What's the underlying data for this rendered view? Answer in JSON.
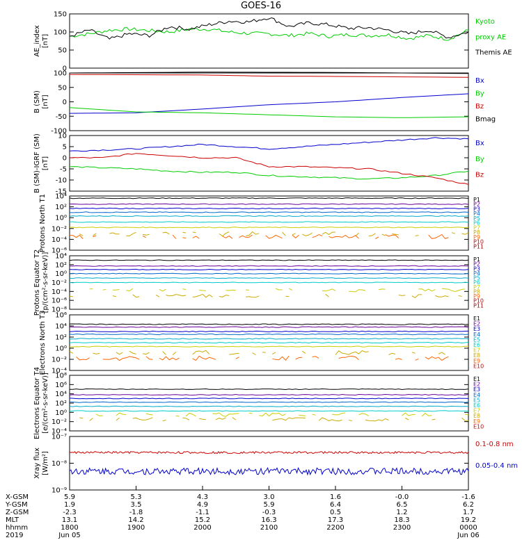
{
  "title": "GOES-16",
  "colors": {
    "black": "#000000",
    "green": "#00cc00",
    "blue": "#0000cc",
    "red": "#cc0000",
    "p": [
      "#000000",
      "#660099",
      "#0000cc",
      "#0066cc",
      "#00aacc",
      "#00cccc",
      "#cccc00",
      "#ccaa00",
      "#ff6600",
      "#cc0000",
      "#aa0000"
    ]
  },
  "chart_data": [
    {
      "type": "line",
      "panel": "ae",
      "ylabel": "AE_index [nT]",
      "ylim": [
        0,
        150
      ],
      "yticks": [
        "0",
        "50",
        "100",
        "150"
      ],
      "legend": [
        {
          "text": "Kyoto",
          "color": "#00cc00"
        },
        {
          "text": "proxy AE",
          "color": "#00cc00"
        },
        {
          "text": "Themis AE",
          "color": "#000000"
        }
      ],
      "series": [
        {
          "name": "Kyoto proxy AE",
          "color": "#00cc00",
          "x": [
            18.0,
            18.3,
            18.6,
            18.9,
            19.2,
            19.5,
            19.8,
            20.1,
            20.4,
            20.7,
            21.0,
            21.3,
            21.6,
            21.9,
            22.2,
            22.5,
            22.8,
            23.1,
            23.4,
            23.7,
            24.0
          ],
          "values": [
            88,
            95,
            105,
            108,
            104,
            100,
            108,
            108,
            100,
            96,
            95,
            90,
            96,
            88,
            93,
            90,
            92,
            82,
            90,
            80,
            105
          ]
        },
        {
          "name": "Themis AE",
          "color": "#000000",
          "x": [
            18.0,
            18.3,
            18.6,
            18.9,
            19.2,
            19.5,
            19.8,
            20.1,
            20.4,
            20.7,
            21.0,
            21.3,
            21.6,
            21.9,
            22.2,
            22.5,
            22.8,
            23.1,
            23.4,
            23.7,
            24.0
          ],
          "values": [
            88,
            105,
            80,
            95,
            90,
            115,
            108,
            120,
            130,
            128,
            140,
            115,
            125,
            120,
            110,
            112,
            105,
            95,
            105,
            85,
            100
          ]
        }
      ]
    },
    {
      "type": "line",
      "panel": "bsm",
      "ylabel": "B (SM) [nT]",
      "ylim": [
        -100,
        100
      ],
      "yticks": [
        "-100",
        "-50",
        "0",
        "50",
        "100"
      ],
      "legend": [
        {
          "text": "Bx",
          "color": "#0000cc"
        },
        {
          "text": "By",
          "color": "#00cc00"
        },
        {
          "text": "Bz",
          "color": "#cc0000"
        },
        {
          "text": "Bmag",
          "color": "#000000"
        }
      ],
      "series": [
        {
          "name": "Bmag",
          "color": "#000000",
          "x": [
            18,
            20,
            22,
            24
          ],
          "values": [
            100,
            103,
            102,
            98
          ]
        },
        {
          "name": "Bz",
          "color": "#cc0000",
          "x": [
            18,
            20,
            21,
            22,
            24
          ],
          "values": [
            95,
            93,
            89,
            88,
            85
          ]
        },
        {
          "name": "Bx",
          "color": "#0000cc",
          "x": [
            18,
            19,
            20,
            21,
            22,
            23,
            24
          ],
          "values": [
            -40,
            -38,
            -25,
            -10,
            0,
            15,
            28
          ]
        },
        {
          "name": "By",
          "color": "#00cc00",
          "x": [
            18,
            19,
            20,
            21,
            22,
            23,
            24
          ],
          "values": [
            -20,
            -35,
            -38,
            -45,
            -52,
            -55,
            -52
          ]
        }
      ]
    },
    {
      "type": "line",
      "panel": "bigrf",
      "ylabel": "B (SM)-IGRF (SM) [nT]",
      "ylim": [
        -15,
        10
      ],
      "yticks": [
        "-15",
        "-10",
        "-5",
        "0",
        "5",
        "10"
      ],
      "legend": [
        {
          "text": "Bx",
          "color": "#0000cc"
        },
        {
          "text": "By",
          "color": "#00cc00"
        },
        {
          "text": "Bz",
          "color": "#cc0000"
        }
      ],
      "series": [
        {
          "name": "Bx",
          "color": "#0000cc",
          "x": [
            18,
            18.5,
            19,
            19.5,
            20,
            20.5,
            21,
            21.5,
            22,
            22.5,
            23,
            23.5,
            24
          ],
          "values": [
            3,
            3.5,
            4,
            5,
            6,
            5,
            4,
            5,
            6,
            7,
            8,
            9,
            8.5
          ]
        },
        {
          "name": "By",
          "color": "#00cc00",
          "x": [
            18,
            18.5,
            19,
            19.5,
            20,
            20.5,
            21,
            21.5,
            22,
            22.5,
            23,
            23.5,
            24
          ],
          "values": [
            -4,
            -4.5,
            -5,
            -6,
            -6.5,
            -6.5,
            -8,
            -8.5,
            -9,
            -9.5,
            -9,
            -8,
            -6
          ]
        },
        {
          "name": "Bz",
          "color": "#cc0000",
          "x": [
            18,
            18.5,
            19,
            19.5,
            20,
            20.5,
            21,
            21.5,
            22,
            22.5,
            23,
            23.5,
            24
          ],
          "values": [
            0,
            0,
            2,
            1,
            0,
            0,
            -4,
            -4,
            -4.5,
            -5,
            -7,
            -9,
            -12
          ]
        }
      ]
    },
    {
      "type": "line",
      "panel": "pn",
      "yscale": "log",
      "ylabel": "Protons North T1",
      "yticks": [
        "10⁻⁶",
        "10⁻⁴",
        "10⁻²",
        "10⁰",
        "10²",
        "10⁴"
      ],
      "legend": [
        "P1",
        "P2",
        "P3",
        "P4",
        "P5",
        "P6",
        "P7",
        "P8",
        "P9",
        "P10",
        "P11"
      ],
      "levels_log10": [
        3.6,
        2.5,
        1.7,
        1.0,
        0.3,
        -0.8,
        -1.8,
        -3,
        -3.5
      ]
    },
    {
      "type": "line",
      "panel": "pe",
      "yscale": "log",
      "ylabel": "Protons Equator T2 [p/(cm²-s-sr-keV)]",
      "yticks": [
        "10⁻⁸",
        "10⁻⁶",
        "10⁻⁴",
        "10⁻²",
        "10⁰",
        "10²",
        "10⁴"
      ],
      "legend": [
        "P1",
        "P2",
        "P3",
        "P4",
        "P5",
        "P6",
        "P7",
        "P8",
        "P9",
        "P10",
        "P11"
      ],
      "levels_log10": [
        3.0,
        1.7,
        0.9,
        0,
        -1,
        -2,
        -3.7,
        -5
      ]
    },
    {
      "type": "line",
      "panel": "en",
      "yscale": "log",
      "ylabel": "Electrons North T3",
      "yticks": [
        "10⁻⁴",
        "10⁻²",
        "10⁰",
        "10²",
        "10⁴",
        "10⁶"
      ],
      "legend": [
        "E1",
        "E2",
        "E3",
        "E4",
        "E5",
        "E6",
        "E7",
        "E8",
        "E9",
        "E10"
      ],
      "levels_log10": [
        4.3,
        3.8,
        3.0,
        2.5,
        1.7,
        1.0,
        0.3,
        -0.8,
        -1.8
      ]
    },
    {
      "type": "line",
      "panel": "ee",
      "yscale": "log",
      "ylabel": "Electrons Equator T4 [e/(cm²-s-sr-keV)]",
      "yticks": [
        "10⁻⁴",
        "10⁻²",
        "10⁰",
        "10²",
        "10⁴",
        "10⁶",
        "10⁸"
      ],
      "legend": [
        "E1",
        "E2",
        "E3",
        "E4",
        "E5",
        "E6",
        "E7",
        "E8",
        "E9",
        "E10"
      ],
      "levels_log10": [
        5.0,
        3.8,
        3.0,
        2.2,
        1.3,
        0.3,
        -0.5,
        -1.5
      ]
    },
    {
      "type": "line",
      "panel": "xray",
      "yscale": "log",
      "ylabel": "Xray flux [W/m²]",
      "yticks": [
        "10⁻⁹",
        "10⁻⁸",
        "10⁻⁷"
      ],
      "legend": [
        {
          "text": "0.1-0.8 nm",
          "color": "#cc0000"
        },
        {
          "text": "0.05-0.4 nm",
          "color": "#0000cc"
        }
      ],
      "series": [
        {
          "name": "0.1-0.8 nm",
          "color": "#cc0000",
          "level_log10": -7.6
        },
        {
          "name": "0.05-0.4 nm",
          "color": "#0000cc",
          "level_log10": -8.3
        }
      ]
    }
  ],
  "axis": {
    "row_labels": [
      "X-GSM",
      "Y-GSM",
      "Z-GSM",
      "MLT",
      "hhmm",
      "2019"
    ],
    "columns": [
      {
        "x": 18,
        "vals": [
          "5.9",
          "1.9",
          "-2.3",
          "13.1",
          "1800",
          "Jun 05"
        ]
      },
      {
        "x": 19,
        "vals": [
          "5.3",
          "3.5",
          "-1.8",
          "14.2",
          "1900",
          ""
        ]
      },
      {
        "x": 20,
        "vals": [
          "4.3",
          "4.9",
          "-1.1",
          "15.2",
          "2000",
          ""
        ]
      },
      {
        "x": 21,
        "vals": [
          "3.0",
          "5.9",
          "-0.3",
          "16.3",
          "2100",
          ""
        ]
      },
      {
        "x": 22,
        "vals": [
          "1.6",
          "6.4",
          "0.5",
          "17.3",
          "2200",
          ""
        ]
      },
      {
        "x": 23,
        "vals": [
          "-0.0",
          "6.5",
          "1.2",
          "18.3",
          "2300",
          ""
        ]
      },
      {
        "x": 24,
        "vals": [
          "-1.6",
          "6.2",
          "1.7",
          "19.2",
          "0000",
          "Jun 06"
        ]
      }
    ]
  }
}
